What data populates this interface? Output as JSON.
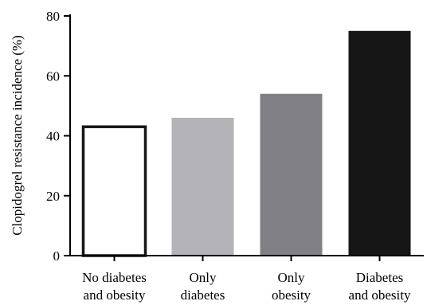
{
  "chart_data": {
    "type": "bar",
    "title": "",
    "xlabel": "",
    "ylabel": "Clopidogrel resistance incidence (%)",
    "ylim": [
      0,
      80
    ],
    "yticks": [
      0,
      20,
      40,
      60,
      80
    ],
    "grid": false,
    "categories": [
      [
        "No diabetes",
        "and obesity"
      ],
      [
        "Only",
        "diabetes"
      ],
      [
        "Only",
        "obesity"
      ],
      [
        "Diabetes",
        "and obesity"
      ]
    ],
    "values": [
      43,
      46,
      54,
      75
    ],
    "colors": [
      "#ffffff",
      "#b3b3b8",
      "#808085",
      "#161616"
    ],
    "outline": "#161616"
  }
}
